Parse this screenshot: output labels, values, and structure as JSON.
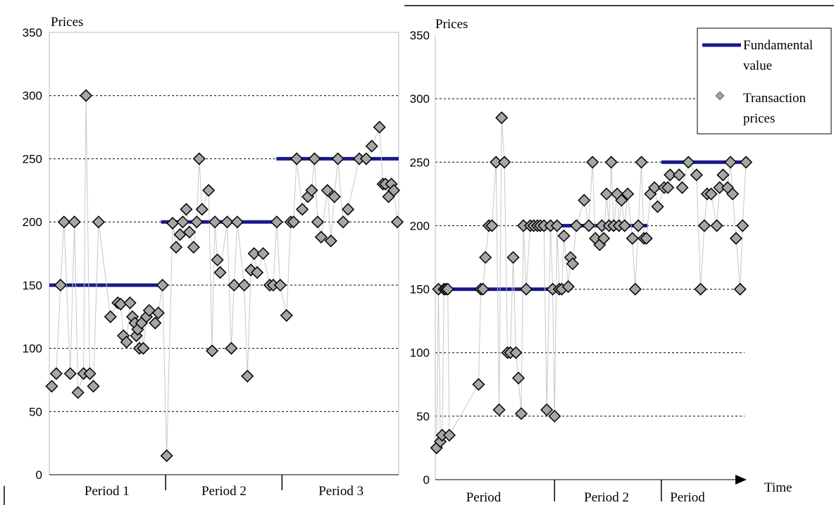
{
  "colors": {
    "fundamental": "#1a1a8c",
    "marker_fill": "#a6a6a6",
    "marker_stroke": "#000000",
    "connector": "#c8c8c8",
    "grid": "#000000"
  },
  "legend": {
    "fundamental_line1": "Fundamental",
    "fundamental_line2": "value",
    "transaction_line1": "Transaction",
    "transaction_line2": "prices"
  },
  "chart_data": [
    {
      "type": "line",
      "ylabel": "Prices",
      "ylim": [
        0,
        350
      ],
      "yticks": [
        "0",
        "50",
        "100",
        "150",
        "200",
        "250",
        "300",
        "350"
      ],
      "grid": "horizontal dashed at 50, 100, 150, 200, 250, 300",
      "periods": [
        "Period 1",
        "Period 2",
        "Period 3"
      ],
      "x_range": [
        0,
        100
      ],
      "period_dividers": [
        33.3,
        66.6
      ],
      "series": [
        {
          "name": "Fundamental value",
          "segments": [
            {
              "x0": 0,
              "x1": 31,
              "y": 150
            },
            {
              "x0": 32,
              "x1": 65,
              "y": 200
            },
            {
              "x0": 65,
              "x1": 100,
              "y": 250
            }
          ]
        },
        {
          "name": "Transaction prices",
          "x": [
            0.7,
            2,
            3.2,
            4.2,
            6,
            7.2,
            8.2,
            9.8,
            10.5,
            11.6,
            12.6,
            14.1,
            17.5,
            19.6,
            20.4,
            21.2,
            22.1,
            23.1,
            23.8,
            24.5,
            24.9,
            25.3,
            25.8,
            26.4,
            26.9,
            27.8,
            28.6,
            30.3,
            31.2,
            32.4,
            33.6,
            35.3,
            36.3,
            37.4,
            38.2,
            39.2,
            40.1,
            41.3,
            42.2,
            42.9,
            43.7,
            45.6,
            46.6,
            47.4,
            48.1,
            48.9,
            50.9,
            52.1,
            52.9,
            53.8,
            55.8,
            56.7,
            57.7,
            58.6,
            59.5,
            61.2,
            63.1,
            64.1,
            65.1,
            66.1,
            67.9,
            69.1,
            69.9,
            70.8,
            72.4,
            74,
            75.1,
            75.9,
            76.8,
            77.8,
            79.6,
            80.6,
            81.6,
            82.6,
            84.1,
            85.5,
            88.7,
            90.7,
            92.3,
            94.5,
            95.5,
            96.2,
            97.1,
            97.9,
            98.6,
            99.6
          ],
          "y": [
            70,
            80,
            150,
            200,
            80,
            200,
            65,
            80,
            300,
            80,
            70,
            200,
            125,
            136,
            135,
            110,
            105,
            136,
            125,
            120,
            110,
            115,
            100,
            120,
            100,
            125,
            130,
            120,
            128,
            150,
            15,
            199,
            180,
            190,
            200,
            210,
            192,
            180,
            200,
            250,
            210,
            225,
            98,
            200,
            170,
            160,
            200,
            100,
            150,
            200,
            150,
            78,
            162,
            175,
            160,
            175,
            150,
            150,
            200,
            150,
            126,
            200,
            200,
            250,
            210,
            220,
            225,
            250,
            200,
            188,
            225,
            185,
            220,
            250,
            200,
            210,
            250,
            250,
            260,
            275,
            230,
            230,
            220,
            230,
            225,
            200
          ]
        }
      ]
    },
    {
      "type": "line",
      "ylabel": "Prices",
      "xlabel": "Time",
      "ylim": [
        0,
        350
      ],
      "yticks": [
        "0",
        "50",
        "100",
        "150",
        "200",
        "250",
        "300",
        "350"
      ],
      "grid": "horizontal dashed at 50, 100, 150, 200, 250, 300",
      "periods": [
        "Period",
        "Period 2",
        "Period"
      ],
      "x_range": [
        0,
        100
      ],
      "period_dividers": [
        38.3,
        72.6
      ],
      "series": [
        {
          "name": "Fundamental value",
          "segments": [
            {
              "x0": 0,
              "x1": 38.2,
              "y": 150
            },
            {
              "x0": 38.2,
              "x1": 68.3,
              "y": 200
            },
            {
              "x0": 72.6,
              "x1": 100,
              "y": 250
            }
          ]
        },
        {
          "name": "Transaction prices",
          "x": [
            0.4,
            1,
            1.6,
            2.2,
            2.8,
            3.4,
            4,
            4.5,
            13.9,
            14.6,
            15.3,
            16.1,
            17.2,
            18.2,
            19.5,
            20.5,
            21.3,
            22.2,
            23.2,
            24.1,
            25,
            25.9,
            26.7,
            27.6,
            28.3,
            29.2,
            30.5,
            31.6,
            32.8,
            33.7,
            34.9,
            35.8,
            37,
            37.7,
            38.3,
            39.1,
            39.8,
            40.6,
            41.3,
            42.7,
            43.4,
            44.1,
            45.3,
            47.8,
            49.3,
            50.5,
            51.4,
            52.8,
            53.5,
            54.1,
            55,
            55.8,
            56.5,
            57.3,
            58.4,
            59,
            59.8,
            60.8,
            61.8,
            63.3,
            64.2,
            65.2,
            66.2,
            67,
            67.8,
            69.1,
            70.4,
            71.4,
            73.5,
            74.7,
            75.4,
            78.3,
            79.3,
            81.3,
            83.9,
            85.2,
            86.4,
            87.3,
            88.6,
            90.4,
            91.3,
            92.4,
            93.9,
            94.8,
            95.5,
            96.6,
            97.9,
            98.7,
            99.8
          ],
          "y": [
            25,
            150,
            30,
            35,
            150,
            150,
            150,
            35,
            75,
            150,
            150,
            175,
            200,
            200,
            250,
            55,
            285,
            250,
            100,
            100,
            175,
            100,
            80,
            52,
            200,
            150,
            200,
            200,
            200,
            200,
            200,
            55,
            200,
            150,
            50,
            200,
            150,
            150,
            192,
            152,
            175,
            170,
            200,
            220,
            200,
            250,
            190,
            185,
            200,
            190,
            225,
            200,
            250,
            200,
            225,
            200,
            220,
            200,
            225,
            190,
            150,
            200,
            250,
            190,
            190,
            225,
            230,
            215,
            230,
            230,
            240,
            240,
            230,
            250,
            240,
            150,
            200,
            225,
            225,
            200,
            230,
            240,
            230,
            250,
            225,
            190,
            150,
            200,
            250
          ]
        }
      ]
    }
  ]
}
